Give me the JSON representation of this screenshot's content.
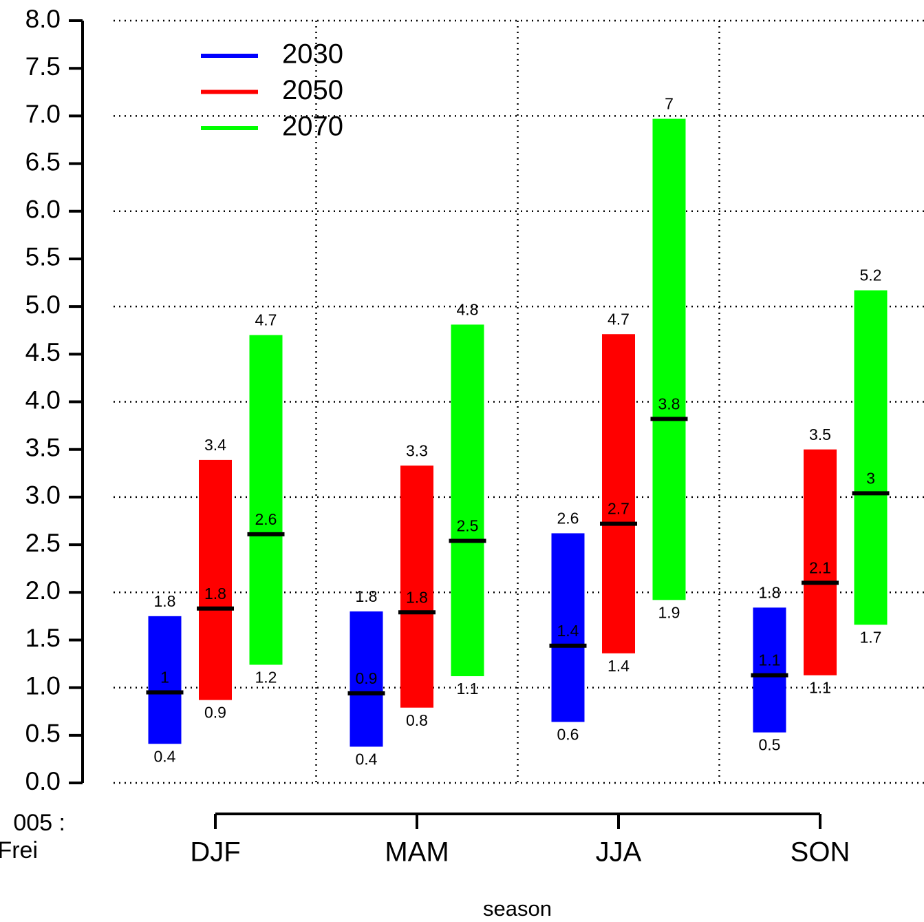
{
  "chart_data": {
    "type": "range_bar",
    "x_label": "season",
    "side_label_lines": [
      "005 :",
      "Frei"
    ],
    "categories": [
      "DJF",
      "MAM",
      "JJA",
      "SON"
    ],
    "ylim": [
      0,
      8
    ],
    "yticks": [
      {
        "value": 0,
        "label": "0.0"
      },
      0.5,
      {
        "value": 1,
        "label": "1.0"
      },
      1.5,
      {
        "value": 2,
        "label": "2.0"
      },
      2.5,
      {
        "value": 3,
        "label": "3.0"
      },
      3.5,
      {
        "value": 4,
        "label": "4.0"
      },
      4.5,
      {
        "value": 5,
        "label": "5.0"
      },
      5.5,
      {
        "value": 6,
        "label": "6.0"
      },
      6.5,
      {
        "value": 7,
        "label": "7.0"
      },
      7.5,
      {
        "value": 8,
        "label": "8.0"
      }
    ],
    "grid": true,
    "legend": "top-left",
    "median_color": "#000000",
    "series": [
      {
        "name": "2030",
        "color": "#0000ff",
        "low": [
          0.41,
          0.38,
          0.64,
          0.53
        ],
        "low_labels": [
          "0.4",
          "0.4",
          "0.6",
          "0.5"
        ],
        "high": [
          1.75,
          1.8,
          2.62,
          1.84
        ],
        "high_labels": [
          "1.8",
          "1.8",
          "2.6",
          "1.8"
        ],
        "values": [
          0.95,
          0.94,
          1.44,
          1.13
        ],
        "value_labels": [
          "1",
          "0.9",
          "1.4",
          "1.1"
        ]
      },
      {
        "name": "2050",
        "color": "#ff0000",
        "low": [
          0.87,
          0.79,
          1.36,
          1.13
        ],
        "low_labels": [
          "0.9",
          "0.8",
          "1.4",
          "1.1"
        ],
        "high": [
          3.39,
          3.33,
          4.71,
          3.5
        ],
        "high_labels": [
          "3.4",
          "3.3",
          "4.7",
          "3.5"
        ],
        "values": [
          1.83,
          1.79,
          2.72,
          2.1
        ],
        "value_labels": [
          "1.8",
          "1.8",
          "2.7",
          "2.1"
        ]
      },
      {
        "name": "2070",
        "color": "#00ff00",
        "low": [
          1.24,
          1.12,
          1.92,
          1.66
        ],
        "low_labels": [
          "1.2",
          "1.1",
          "1.9",
          "1.7"
        ],
        "high": [
          4.7,
          4.81,
          6.97,
          5.17
        ],
        "high_labels": [
          "4.7",
          "4.8",
          "7",
          "5.2"
        ],
        "values": [
          2.61,
          2.54,
          3.82,
          3.04
        ],
        "value_labels": [
          "2.6",
          "2.5",
          "3.8",
          "3"
        ]
      }
    ]
  }
}
